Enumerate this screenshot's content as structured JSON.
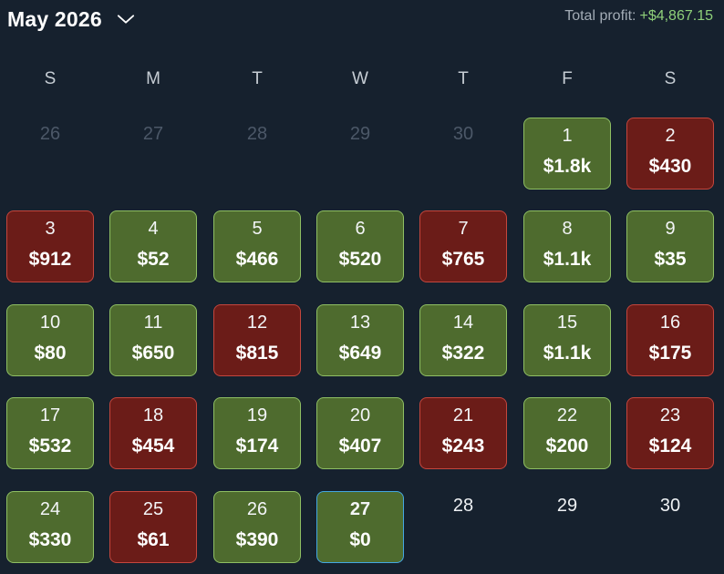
{
  "header": {
    "month_label": "May 2026",
    "profit_label": "Total profit:",
    "profit_value": "+$4,867.15"
  },
  "weekdays": [
    "S",
    "M",
    "T",
    "W",
    "T",
    "F",
    "S"
  ],
  "colors": {
    "profit": "#4e6b2e",
    "loss": "#6b1c18",
    "today_border": "#44a7e0",
    "profit_text": "#8fd17a"
  },
  "days": [
    {
      "day": "26",
      "status": "muted"
    },
    {
      "day": "27",
      "status": "muted"
    },
    {
      "day": "28",
      "status": "muted"
    },
    {
      "day": "29",
      "status": "muted"
    },
    {
      "day": "30",
      "status": "muted"
    },
    {
      "day": "1",
      "amount": "$1.8k",
      "status": "profit"
    },
    {
      "day": "2",
      "amount": "$430",
      "status": "loss"
    },
    {
      "day": "3",
      "amount": "$912",
      "status": "loss"
    },
    {
      "day": "4",
      "amount": "$52",
      "status": "profit"
    },
    {
      "day": "5",
      "amount": "$466",
      "status": "profit"
    },
    {
      "day": "6",
      "amount": "$520",
      "status": "profit"
    },
    {
      "day": "7",
      "amount": "$765",
      "status": "loss"
    },
    {
      "day": "8",
      "amount": "$1.1k",
      "status": "profit"
    },
    {
      "day": "9",
      "amount": "$35",
      "status": "profit"
    },
    {
      "day": "10",
      "amount": "$80",
      "status": "profit"
    },
    {
      "day": "11",
      "amount": "$650",
      "status": "profit"
    },
    {
      "day": "12",
      "amount": "$815",
      "status": "loss"
    },
    {
      "day": "13",
      "amount": "$649",
      "status": "profit"
    },
    {
      "day": "14",
      "amount": "$322",
      "status": "profit"
    },
    {
      "day": "15",
      "amount": "$1.1k",
      "status": "profit"
    },
    {
      "day": "16",
      "amount": "$175",
      "status": "loss"
    },
    {
      "day": "17",
      "amount": "$532",
      "status": "profit"
    },
    {
      "day": "18",
      "amount": "$454",
      "status": "loss"
    },
    {
      "day": "19",
      "amount": "$174",
      "status": "profit"
    },
    {
      "day": "20",
      "amount": "$407",
      "status": "profit"
    },
    {
      "day": "21",
      "amount": "$243",
      "status": "loss"
    },
    {
      "day": "22",
      "amount": "$200",
      "status": "profit"
    },
    {
      "day": "23",
      "amount": "$124",
      "status": "loss"
    },
    {
      "day": "24",
      "amount": "$330",
      "status": "profit"
    },
    {
      "day": "25",
      "amount": "$61",
      "status": "loss"
    },
    {
      "day": "26",
      "amount": "$390",
      "status": "profit"
    },
    {
      "day": "27",
      "amount": "$0",
      "status": "profit",
      "today": true
    },
    {
      "day": "28",
      "status": "future"
    },
    {
      "day": "29",
      "status": "future"
    },
    {
      "day": "30",
      "status": "future"
    }
  ]
}
